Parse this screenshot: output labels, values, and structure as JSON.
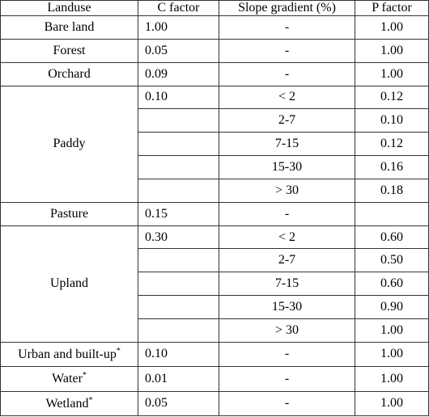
{
  "table": {
    "header": [
      "Landuse",
      "C factor",
      "Slope gradient (%)",
      "P factor"
    ],
    "rows": [
      {
        "landuse": "Bare land",
        "c_factor": "1.00",
        "slopes": [
          {
            "slope": "-",
            "p_factor": "1.00"
          }
        ]
      },
      {
        "landuse": "Forest",
        "c_factor": "0.05",
        "slopes": [
          {
            "slope": "-",
            "p_factor": "1.00"
          }
        ]
      },
      {
        "landuse": "Orchard",
        "c_factor": "0.09",
        "slopes": [
          {
            "slope": "-",
            "p_factor": "1.00"
          }
        ]
      },
      {
        "landuse": "Paddy",
        "c_factor": "0.10",
        "slopes": [
          {
            "slope": "< 2",
            "p_factor": "0.12"
          },
          {
            "slope": "2-7",
            "p_factor": "0.10"
          },
          {
            "slope": "7-15",
            "p_factor": "0.12"
          },
          {
            "slope": "15-30",
            "p_factor": "0.16"
          },
          {
            "slope": "> 30",
            "p_factor": "0.18"
          }
        ]
      },
      {
        "landuse": "Pasture",
        "c_factor": "0.15",
        "slopes": [
          {
            "slope": "-"
          }
        ]
      },
      {
        "landuse": "Upland",
        "c_factor": "0.30",
        "slopes": [
          {
            "slope": "< 2",
            "p_factor": "0.60"
          },
          {
            "slope": "2-7",
            "p_factor": "0.50"
          },
          {
            "slope": "7-15",
            "p_factor": "0.60"
          },
          {
            "slope": "15-30",
            "p_factor": "0.90"
          },
          {
            "slope": "> 30",
            "p_factor": "1.00"
          }
        ]
      },
      {
        "landuse": "Urban and built-up",
        "note": "*",
        "c_factor": "0.10",
        "slopes": [
          {
            "slope": "-",
            "p_factor": "1.00"
          }
        ]
      },
      {
        "landuse": "Water",
        "note": "*",
        "c_factor": "0.01",
        "slopes": [
          {
            "slope": "-",
            "p_factor": "1.00"
          }
        ]
      },
      {
        "landuse": "Wetland",
        "note": "*",
        "c_factor": "0.05",
        "slopes": [
          {
            "slope": "-",
            "p_factor": "1.00"
          }
        ]
      }
    ]
  }
}
